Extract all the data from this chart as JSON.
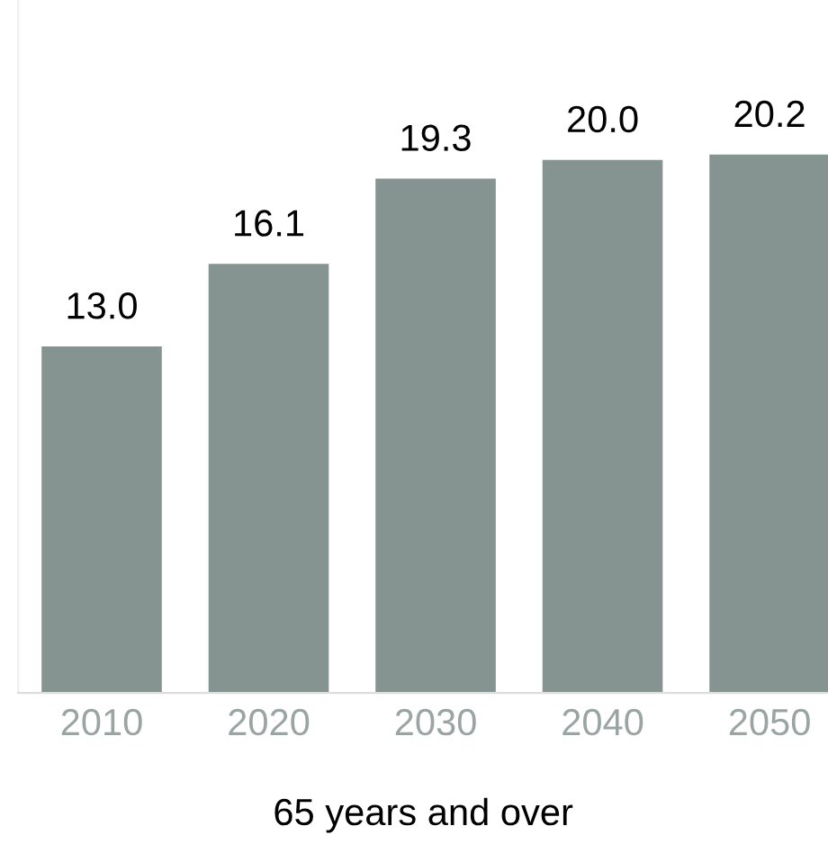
{
  "chart_data": {
    "type": "bar",
    "xlabel": "65 years and over",
    "categories": [
      "2010",
      "2020",
      "2030",
      "2040",
      "2050"
    ],
    "values": [
      13.0,
      16.1,
      19.3,
      20.0,
      20.2
    ],
    "value_labels": [
      "13.0",
      "16.1",
      "19.3",
      "20.0",
      "20.2"
    ],
    "color": "#859490",
    "ylim": [
      0,
      26
    ],
    "grid": false,
    "legend": false
  }
}
